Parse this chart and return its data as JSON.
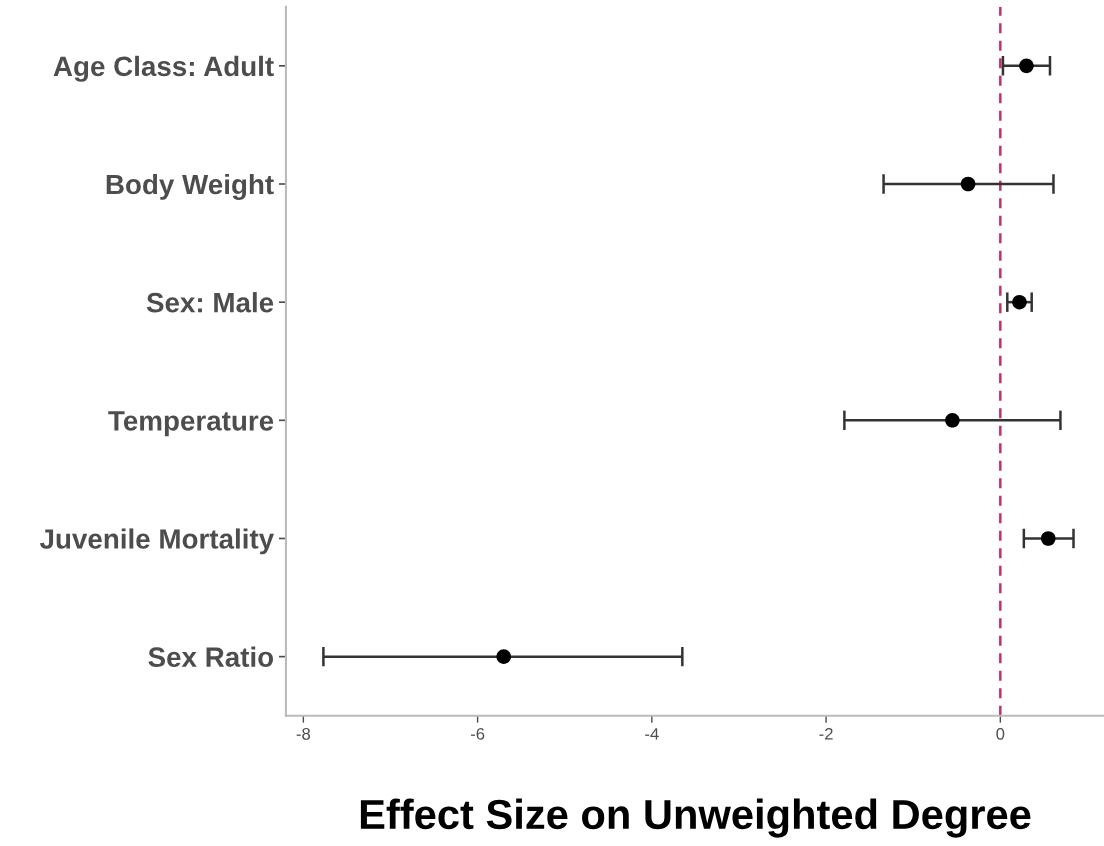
{
  "chart_data": {
    "type": "scatter",
    "orientation": "horizontal",
    "xlabel": "Effect Size on Unweighted Degree",
    "categories": [
      "Age Class: Adult",
      "Body Weight",
      "Sex: Male",
      "Temperature",
      "Juvenile Mortality",
      "Sex Ratio"
    ],
    "series": [
      {
        "color": "#000000",
        "values": [
          0.3,
          -0.37,
          0.22,
          -0.55,
          0.55,
          -5.7
        ],
        "errors": [
          [
            0.03,
            0.57
          ],
          [
            -1.34,
            0.61
          ],
          [
            0.08,
            0.36
          ],
          [
            -1.79,
            0.69
          ],
          [
            0.27,
            0.84
          ],
          [
            -7.77,
            -3.65
          ]
        ]
      }
    ],
    "xlim": [
      -8.2,
      1.19
    ],
    "xticks": [
      -8,
      -6,
      -4,
      -2,
      0
    ],
    "ref_lines": [
      {
        "axis": "x",
        "value": 0,
        "color": "#c8325a",
        "line_style": "dashed"
      }
    ],
    "grid": false,
    "marker": "circle"
  }
}
